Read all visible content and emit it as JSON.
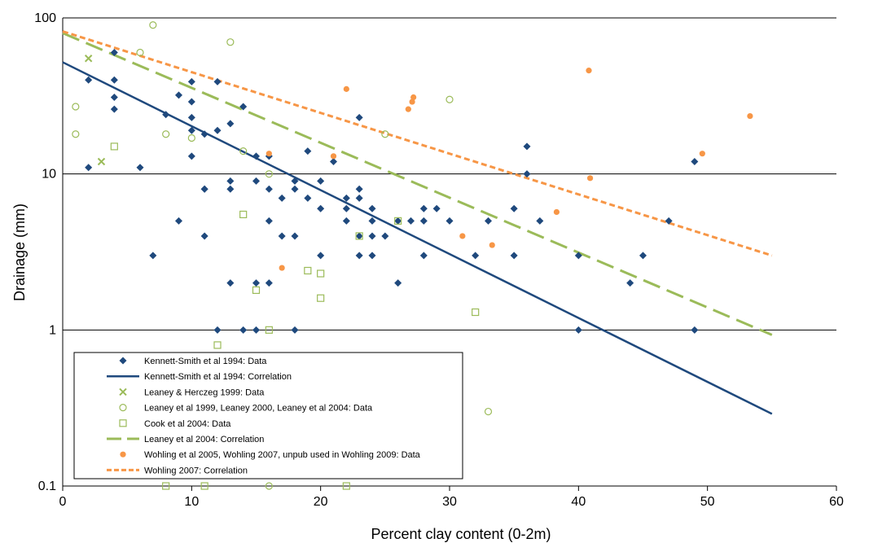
{
  "chart_data": {
    "type": "scatter",
    "title": "",
    "xlabel": "Percent clay content (0-2m)",
    "ylabel": "Drainage (mm)",
    "xlim": [
      0,
      60
    ],
    "ylim": [
      0.1,
      100
    ],
    "yscale": "log",
    "grid": "horizontal major lines at each decade",
    "legend_position": "bottom-left inside plot",
    "x_ticks": [
      "0",
      "10",
      "20",
      "30",
      "40",
      "50",
      "60"
    ],
    "y_ticks": [
      "0.1",
      "1",
      "10",
      "100"
    ],
    "series": [
      {
        "name": "Kennett-Smith et al 1994: Data",
        "kind": "points",
        "marker": "diamond",
        "color": "#1F497D",
        "points": [
          [
            2,
            40
          ],
          [
            2,
            11
          ],
          [
            4,
            60
          ],
          [
            4,
            40
          ],
          [
            4,
            31
          ],
          [
            4,
            26
          ],
          [
            6,
            11
          ],
          [
            7,
            3
          ],
          [
            8,
            24
          ],
          [
            9,
            32
          ],
          [
            9,
            5
          ],
          [
            10,
            39
          ],
          [
            10,
            29
          ],
          [
            10,
            23
          ],
          [
            10,
            19
          ],
          [
            10,
            13
          ],
          [
            11,
            18
          ],
          [
            11,
            8
          ],
          [
            11,
            8
          ],
          [
            11,
            4
          ],
          [
            12,
            39
          ],
          [
            12,
            19
          ],
          [
            12,
            1
          ],
          [
            13,
            21
          ],
          [
            13,
            9
          ],
          [
            13,
            8
          ],
          [
            13,
            2
          ],
          [
            14,
            27
          ],
          [
            14,
            1
          ],
          [
            15,
            13
          ],
          [
            15,
            9
          ],
          [
            15,
            2
          ],
          [
            15,
            1
          ],
          [
            16,
            13
          ],
          [
            16,
            8
          ],
          [
            16,
            5
          ],
          [
            16,
            2
          ],
          [
            17,
            7
          ],
          [
            17,
            4
          ],
          [
            18,
            9
          ],
          [
            18,
            8
          ],
          [
            18,
            4
          ],
          [
            18,
            1
          ],
          [
            19,
            14
          ],
          [
            19,
            7
          ],
          [
            20,
            9
          ],
          [
            20,
            6
          ],
          [
            20,
            3
          ],
          [
            21,
            12
          ],
          [
            22,
            7
          ],
          [
            22,
            6
          ],
          [
            22,
            5
          ],
          [
            23,
            23
          ],
          [
            23,
            8
          ],
          [
            23,
            7
          ],
          [
            23,
            4
          ],
          [
            23,
            3
          ],
          [
            24,
            6
          ],
          [
            24,
            5
          ],
          [
            24,
            4
          ],
          [
            24,
            3
          ],
          [
            25,
            4
          ],
          [
            26,
            5
          ],
          [
            26,
            2
          ],
          [
            27,
            5
          ],
          [
            28,
            6
          ],
          [
            28,
            5
          ],
          [
            28,
            3
          ],
          [
            29,
            6
          ],
          [
            30,
            5
          ],
          [
            32,
            3
          ],
          [
            33,
            5
          ],
          [
            35,
            6
          ],
          [
            35,
            3
          ],
          [
            36,
            15
          ],
          [
            36,
            10
          ],
          [
            37,
            5
          ],
          [
            40,
            3
          ],
          [
            40,
            1
          ],
          [
            44,
            2
          ],
          [
            45,
            3
          ],
          [
            47,
            5
          ],
          [
            49,
            12
          ],
          [
            49,
            1
          ]
        ]
      },
      {
        "name": "Kennett-Smith et al 1994: Correlation",
        "kind": "line",
        "style": "solid",
        "color": "#1F497D",
        "points": [
          [
            0,
            52
          ],
          [
            55,
            0.29
          ]
        ]
      },
      {
        "name": "Leaney & Herczeg 1999: Data",
        "kind": "points",
        "marker": "x",
        "color": "#9BBB59",
        "points": [
          [
            2,
            55
          ],
          [
            3,
            12
          ]
        ]
      },
      {
        "name": "Leaney et al 1999, Leaney 2000, Leaney et al 2004: Data",
        "kind": "points",
        "marker": "circle-open",
        "color": "#9BBB59",
        "points": [
          [
            1,
            27
          ],
          [
            1,
            18
          ],
          [
            6,
            60
          ],
          [
            7,
            90
          ],
          [
            8,
            18
          ],
          [
            10,
            17
          ],
          [
            13,
            70
          ],
          [
            14,
            14
          ],
          [
            16,
            10
          ],
          [
            25,
            18
          ],
          [
            30,
            30
          ],
          [
            33,
            0.3
          ],
          [
            16,
            0.1
          ]
        ]
      },
      {
        "name": "Cook et al 2004: Data",
        "kind": "points",
        "marker": "square-open",
        "color": "#9BBB59",
        "points": [
          [
            4,
            15
          ],
          [
            8,
            0.1
          ],
          [
            11,
            0.1
          ],
          [
            12,
            0.8
          ],
          [
            14,
            5.5
          ],
          [
            15,
            1.8
          ],
          [
            16,
            1
          ],
          [
            19,
            2.4
          ],
          [
            20,
            2.3
          ],
          [
            20,
            1.6
          ],
          [
            22,
            0.1
          ],
          [
            23,
            4
          ],
          [
            26,
            5
          ],
          [
            32,
            1.3
          ]
        ]
      },
      {
        "name": "Leaney et al 2004: Correlation",
        "kind": "line",
        "style": "long-dash",
        "color": "#9BBB59",
        "points": [
          [
            0,
            80
          ],
          [
            55,
            0.93
          ]
        ]
      },
      {
        "name": "Wohling et al 2005, Wohling 2007, unpub used in Wohling 2009: Data",
        "kind": "points",
        "marker": "circle-filled",
        "color": "#F79646",
        "points": [
          [
            16,
            13.5
          ],
          [
            17,
            2.5
          ],
          [
            21,
            13
          ],
          [
            22,
            35
          ],
          [
            26.8,
            26
          ],
          [
            27.1,
            29
          ],
          [
            27.2,
            31
          ],
          [
            31,
            4
          ],
          [
            33.3,
            3.5
          ],
          [
            38.3,
            5.7
          ],
          [
            40.8,
            46
          ],
          [
            40.9,
            9.4
          ],
          [
            49.6,
            13.5
          ],
          [
            53.3,
            23.5
          ]
        ]
      },
      {
        "name": "Wohling 2007: Correlation",
        "kind": "line",
        "style": "short-dash",
        "color": "#F79646",
        "points": [
          [
            0,
            82
          ],
          [
            55,
            3
          ]
        ]
      }
    ]
  }
}
